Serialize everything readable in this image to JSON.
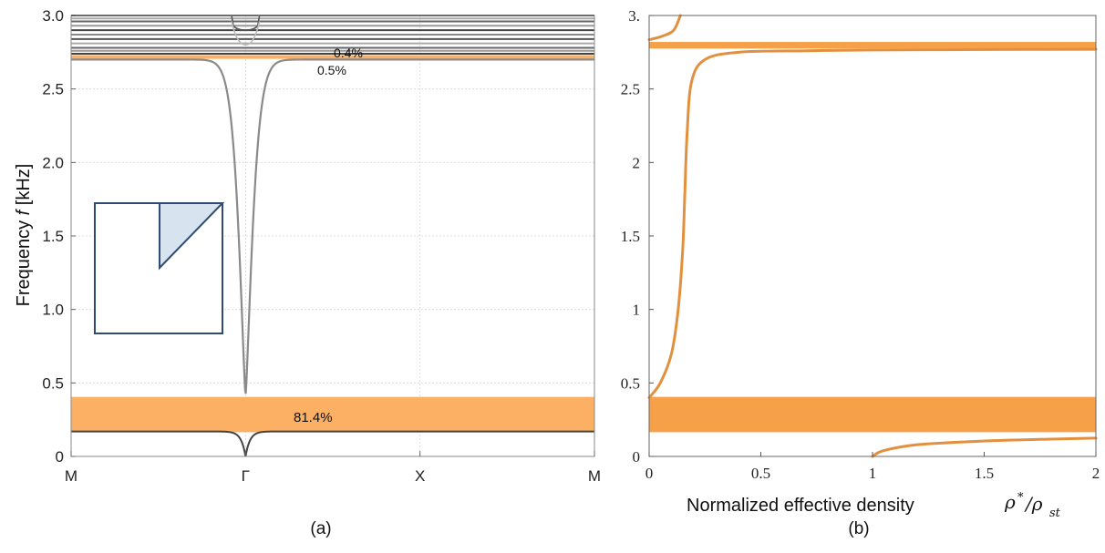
{
  "chart_data": [
    {
      "panel_label": "(a)",
      "type": "line",
      "ylabel_prefix": "Frequency ",
      "ylabel_var": "f",
      "ylabel_unit": " [kHz]",
      "xlabel": "",
      "ylim": [
        0,
        3.0
      ],
      "yticks": [
        "0",
        "0.5",
        "1.0",
        "1.5",
        "2.0",
        "2.5",
        "3.0"
      ],
      "ytick_values": [
        0,
        0.5,
        1.0,
        1.5,
        2.0,
        2.5,
        3.0
      ],
      "xticks": [
        "M",
        "Γ",
        "X",
        "M"
      ],
      "xtick_positions": [
        0,
        1,
        2,
        3
      ],
      "grid": true,
      "band_gaps": [
        {
          "from": 0.165,
          "to": 0.405,
          "label": "81.4%",
          "color": "#fbb064"
        },
        {
          "from": 2.705,
          "to": 2.73,
          "label": "0.4%",
          "color": "#fbb064"
        }
      ],
      "gap_annotation_extra": "0.5%",
      "bands": [
        {
          "name": "",
          "x": [
            0,
            0.8,
            0.95,
            1.0,
            1.05,
            1.2,
            3
          ],
          "y": [
            0.17,
            0.17,
            0.14,
            0.0,
            0.14,
            0.17,
            0.17
          ]
        },
        {
          "name": "",
          "x": [
            0,
            0.7,
            0.92,
            0.98,
            1.0,
            1.02,
            1.08,
            1.3,
            3
          ],
          "y": [
            2.7,
            2.7,
            2.55,
            1.4,
            0.41,
            1.4,
            2.55,
            2.7,
            2.7
          ]
        }
      ],
      "upper_flat_bands": [
        2.74,
        2.76,
        2.78,
        2.81,
        2.84,
        2.87,
        2.9,
        2.93,
        2.96,
        2.98,
        3.0
      ],
      "inset": "irreducible-brillouin-zone"
    },
    {
      "panel_label": "(b)",
      "type": "line",
      "xlabel": "Normalized effective density",
      "xlabel_symbol": "ρ",
      "xlabel_sup": "*",
      "xlabel_over": "/ρ",
      "xlabel_sub": "st",
      "xlim": [
        0,
        2
      ],
      "ylim": [
        0,
        3.0
      ],
      "xticks": [
        "0",
        "0.5",
        "1",
        "1.5",
        "2"
      ],
      "xtick_values": [
        0,
        0.5,
        1,
        1.5,
        2
      ],
      "yticks": [
        "0",
        "0.5",
        "1",
        "1.5",
        "2",
        "2.5",
        "3."
      ],
      "ytick_values": [
        0,
        0.5,
        1,
        1.5,
        2,
        2.5,
        3.0
      ],
      "grid": false,
      "band_gaps": [
        {
          "from": 0.165,
          "to": 0.405,
          "color": "#f7a04a"
        },
        {
          "from": 2.775,
          "to": 2.82,
          "color": "#f7a04a"
        }
      ],
      "series": [
        {
          "name": "",
          "x": [
            1.0,
            1.05,
            1.2,
            1.5,
            1.8,
            2.0
          ],
          "y": [
            0.0,
            0.04,
            0.08,
            0.105,
            0.118,
            0.125
          ]
        },
        {
          "name": "",
          "x": [
            0.0,
            0.05,
            0.1,
            0.13,
            0.15,
            0.16,
            0.17,
            0.19,
            0.25,
            0.4,
            0.7,
            1.0,
            1.5,
            2.0
          ],
          "y": [
            0.4,
            0.5,
            0.7,
            1.0,
            1.4,
            1.8,
            2.2,
            2.55,
            2.7,
            2.75,
            2.76,
            2.765,
            2.768,
            2.77
          ]
        },
        {
          "name": "",
          "x": [
            0.0,
            0.06,
            0.11,
            0.14
          ],
          "y": [
            2.835,
            2.86,
            2.9,
            3.0
          ]
        }
      ]
    }
  ]
}
